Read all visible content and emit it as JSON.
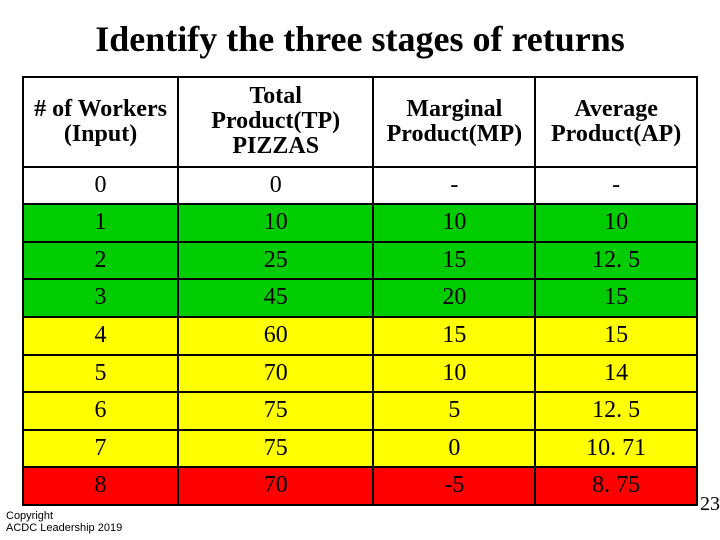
{
  "title": "Identify the three stages of returns",
  "columns": [
    {
      "label": "# of Workers (Input)",
      "width": "23%"
    },
    {
      "label": "Total Product(TP) PIZZAS",
      "width": "29%"
    },
    {
      "label": "Marginal Product(MP)",
      "width": "24%"
    },
    {
      "label": "Average Product(AP)",
      "width": "24%"
    }
  ],
  "header_html": [
    "# of Workers<br>(Input)",
    "Total Product(TP)<br>PIZZAS",
    "Marginal<br>Product(MP)",
    "Average<br>Product(AP)"
  ],
  "rows": [
    {
      "cells": [
        "0",
        "0",
        "-",
        "-"
      ],
      "bg": "#ffffff"
    },
    {
      "cells": [
        "1",
        "10",
        "10",
        "10"
      ],
      "bg": "#00cc00"
    },
    {
      "cells": [
        "2",
        "25",
        "15",
        "12. 5"
      ],
      "bg": "#00cc00"
    },
    {
      "cells": [
        "3",
        "45",
        "20",
        "15"
      ],
      "bg": "#00cc00"
    },
    {
      "cells": [
        "4",
        "60",
        "15",
        "15"
      ],
      "bg": "#ffff00"
    },
    {
      "cells": [
        "5",
        "70",
        "10",
        "14"
      ],
      "bg": "#ffff00"
    },
    {
      "cells": [
        "6",
        "75",
        "5",
        "12. 5"
      ],
      "bg": "#ffff00"
    },
    {
      "cells": [
        "7",
        "75",
        "0",
        "10. 71"
      ],
      "bg": "#ffff00"
    },
    {
      "cells": [
        "8",
        "70",
        "-5",
        "8. 75"
      ],
      "bg": "#ff0000"
    }
  ],
  "header_bg": "#ffffff",
  "border_color": "#000000",
  "title_fontsize": 36,
  "cell_fontsize": 24,
  "copyright_lines": [
    "Copyright",
    "ACDC Leadership 2019"
  ],
  "page_number_fragment": "23"
}
